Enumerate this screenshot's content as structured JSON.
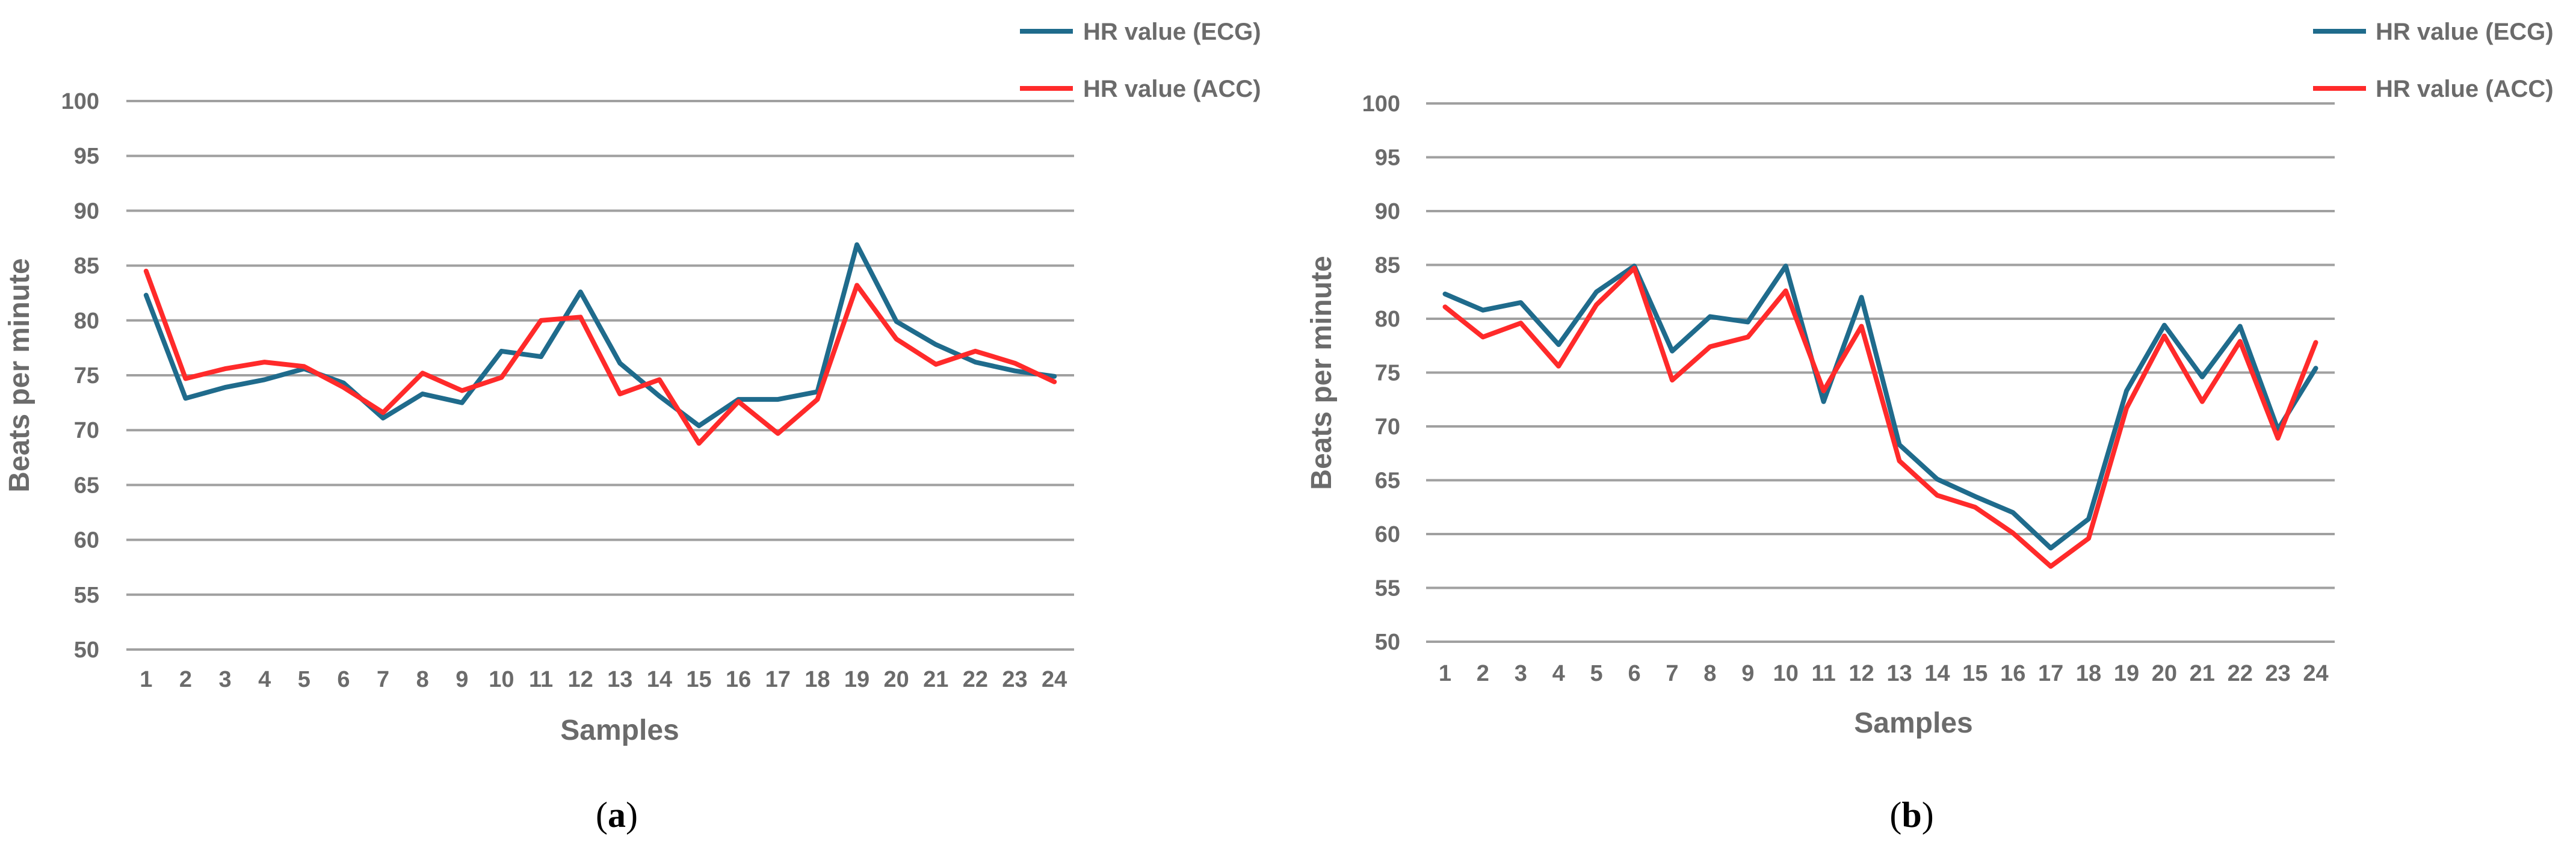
{
  "figure": {
    "colors": {
      "ecg": "#1f6b8c",
      "acc": "#ff2a2a",
      "text": "#6b6b6b",
      "grid": "#a0a0a0"
    }
  },
  "chart_data": [
    {
      "id": "a",
      "type": "line",
      "caption": {
        "open": "(",
        "letter": "a",
        "close": ")"
      },
      "xlabel": "Samples",
      "ylabel": "Beats per minute",
      "ylim": [
        50,
        100
      ],
      "yticks": [
        50,
        55,
        60,
        65,
        70,
        75,
        80,
        85,
        90,
        95,
        100
      ],
      "grid": true,
      "legend_position": "top-right",
      "categories": [
        "1",
        "2",
        "3",
        "4",
        "5",
        "6",
        "7",
        "8",
        "9",
        "10",
        "11",
        "12",
        "13",
        "14",
        "15",
        "16",
        "17",
        "18",
        "19",
        "20",
        "21",
        "22",
        "23",
        "24"
      ],
      "series": [
        {
          "name": "HR value (ECG)",
          "color": "#1f6b8c",
          "values": [
            82.3,
            72.9,
            73.9,
            74.6,
            75.6,
            74.3,
            71.1,
            73.3,
            72.5,
            77.2,
            76.7,
            82.6,
            76.1,
            73.1,
            70.4,
            72.8,
            72.8,
            73.5,
            86.9,
            79.9,
            77.8,
            76.2,
            75.4,
            74.9
          ]
        },
        {
          "name": "HR value (ACC)",
          "color": "#ff2a2a",
          "values": [
            84.5,
            74.7,
            75.6,
            76.2,
            75.8,
            73.9,
            71.6,
            75.2,
            73.6,
            74.8,
            80.0,
            80.3,
            73.3,
            74.6,
            68.8,
            72.6,
            69.7,
            72.8,
            83.2,
            78.3,
            76.0,
            77.2,
            76.1,
            74.4
          ]
        }
      ]
    },
    {
      "id": "b",
      "type": "line",
      "caption": {
        "open": "(",
        "letter": "b",
        "close": ")"
      },
      "xlabel": "Samples",
      "ylabel": "Beats per minute",
      "ylim": [
        50,
        100
      ],
      "yticks": [
        50,
        55,
        60,
        65,
        70,
        75,
        80,
        85,
        90,
        95,
        100
      ],
      "grid": true,
      "legend_position": "top-right",
      "categories": [
        "1",
        "2",
        "3",
        "4",
        "5",
        "6",
        "7",
        "8",
        "9",
        "10",
        "11",
        "12",
        "13",
        "14",
        "15",
        "16",
        "17",
        "18",
        "19",
        "20",
        "21",
        "22",
        "23",
        "24"
      ],
      "series": [
        {
          "name": "HR value (ECG)",
          "color": "#1f6b8c",
          "values": [
            82.3,
            80.8,
            81.5,
            77.6,
            82.5,
            84.9,
            77.0,
            80.2,
            79.7,
            84.9,
            72.3,
            82.0,
            68.3,
            65.1,
            63.5,
            62.0,
            58.7,
            61.4,
            73.3,
            79.4,
            74.6,
            79.3,
            69.7,
            75.4
          ]
        },
        {
          "name": "HR value (ACC)",
          "color": "#ff2a2a",
          "values": [
            81.1,
            78.3,
            79.6,
            75.6,
            81.3,
            84.7,
            74.3,
            77.4,
            78.3,
            82.6,
            73.3,
            79.3,
            66.8,
            63.6,
            62.5,
            60.1,
            57.0,
            59.6,
            71.7,
            78.4,
            72.3,
            77.9,
            68.9,
            77.8
          ]
        }
      ]
    }
  ]
}
